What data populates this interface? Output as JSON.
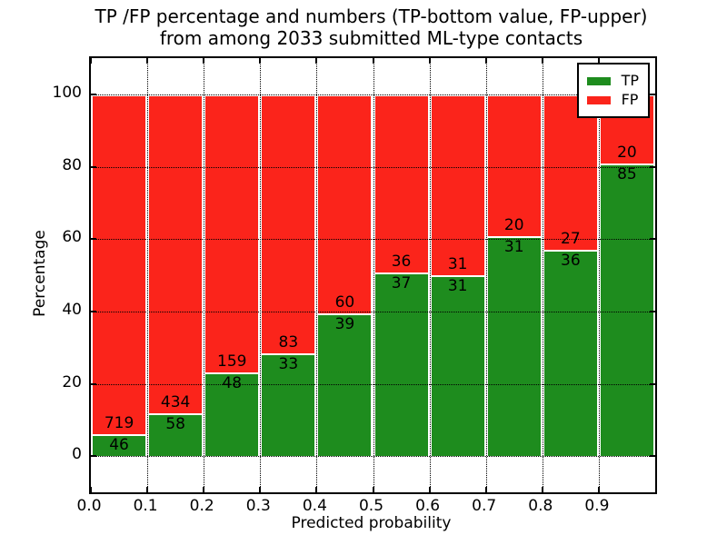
{
  "figure": {
    "title_line1": "TP /FP percentage and numbers (TP-bottom value, FP-upper)",
    "title_line2": "from among 2033 submitted ML-type contacts"
  },
  "chart_data": {
    "type": "bar",
    "stacked": true,
    "percent_normalized": true,
    "title": "TP /FP percentage and numbers (TP-bottom value, FP-upper) from among 2033 submitted ML-type contacts",
    "xlabel": "Predicted probability",
    "ylabel": "Percentage",
    "xlim": [
      0,
      1
    ],
    "ylim": [
      -10,
      110
    ],
    "x_tick_labels": [
      "0.0",
      "0.1",
      "0.2",
      "0.3",
      "0.4",
      "0.5",
      "0.6",
      "0.7",
      "0.8",
      "0.9"
    ],
    "y_tick_labels": [
      "0",
      "20",
      "40",
      "60",
      "80",
      "100"
    ],
    "grid": "dotted",
    "total_contacts": 2033,
    "bins": {
      "start": [
        0,
        0.1,
        0.2,
        0.3,
        0.4,
        0.5,
        0.6,
        0.7,
        0.8,
        0.9
      ],
      "width": 0.1
    },
    "series": [
      {
        "name": "TP",
        "color": "#1e8c1e",
        "counts": [
          46,
          58,
          48,
          33,
          39,
          37,
          31,
          31,
          36,
          85
        ]
      },
      {
        "name": "FP",
        "color": "#fb241b",
        "counts": [
          719,
          434,
          159,
          83,
          60,
          36,
          31,
          20,
          27,
          20
        ]
      }
    ],
    "tp_percent_of_bin": [
      6.0,
      11.8,
      23.2,
      28.4,
      39.4,
      50.7,
      50.0,
      60.8,
      57.1,
      81.0
    ],
    "legend": {
      "location": "upper right",
      "entries": [
        "TP",
        "FP"
      ]
    }
  }
}
